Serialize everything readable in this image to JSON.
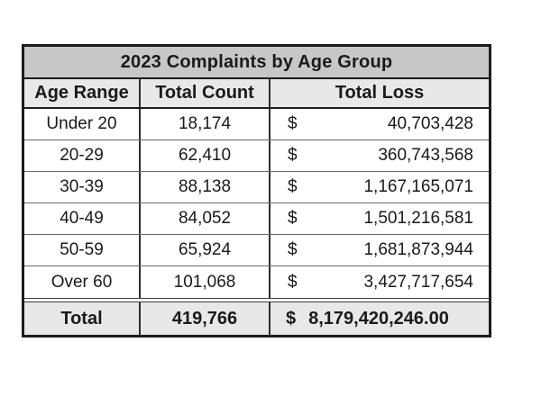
{
  "table": {
    "title": "2023 Complaints by Age Group",
    "columns": [
      "Age Range",
      "Total Count",
      "Total Loss"
    ],
    "currency_symbol": "$",
    "rows": [
      {
        "age_range": "Under 20",
        "total_count": "18,174",
        "currency": "$",
        "total_loss": "40,703,428"
      },
      {
        "age_range": "20-29",
        "total_count": "62,410",
        "currency": "$",
        "total_loss": "360,743,568"
      },
      {
        "age_range": "30-39",
        "total_count": "88,138",
        "currency": "$",
        "total_loss": "1,167,165,071"
      },
      {
        "age_range": "40-49",
        "total_count": "84,052",
        "currency": "$",
        "total_loss": "1,501,216,581"
      },
      {
        "age_range": "50-59",
        "total_count": "65,924",
        "currency": "$",
        "total_loss": "1,681,873,944"
      },
      {
        "age_range": "Over 60",
        "total_count": "101,068",
        "currency": "$",
        "total_loss": "3,427,717,654"
      }
    ],
    "total": {
      "label": "Total",
      "total_count": "419,766",
      "currency": "$",
      "total_loss": "8,179,420,246.00"
    }
  },
  "colors": {
    "title_background": "#c7c7c7",
    "header_background": "#e8e8e8",
    "total_background": "#e8e8e8",
    "row_background": "#ffffff",
    "border": "#1c1c1c",
    "text": "#1a1a1a"
  },
  "chart_data": {
    "type": "table",
    "title": "2023 Complaints by Age Group",
    "columns": [
      "Age Range",
      "Total Count",
      "Total Loss"
    ],
    "rows": [
      [
        "Under 20",
        18174,
        40703428
      ],
      [
        "20-29",
        62410,
        360743568
      ],
      [
        "30-39",
        88138,
        1167165071
      ],
      [
        "40-49",
        84052,
        1501216581
      ],
      [
        "50-59",
        65924,
        1681873944
      ],
      [
        "Over 60",
        101068,
        3427717654
      ]
    ],
    "total_row": [
      "Total",
      419766,
      8179420246.0
    ],
    "currency": "USD",
    "notes": "Total Loss shown with leading $ accounting-style alignment; total row bold on gray background"
  }
}
